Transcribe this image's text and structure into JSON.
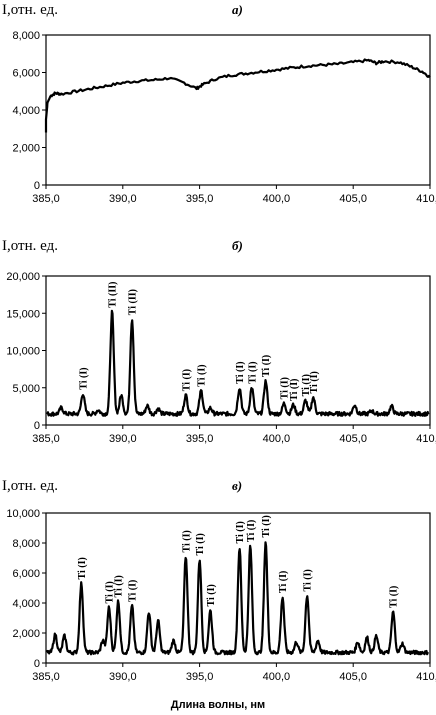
{
  "xlabel": "Длина волны, нм",
  "chart_data": [
    {
      "type": "line",
      "panel_label": "а)",
      "ylabel": "I,отн. ед.",
      "xlim": [
        385,
        410
      ],
      "ylim": [
        0,
        8000
      ],
      "x_ticks": [
        "385,0",
        "390,0",
        "395,0",
        "400,0",
        "405,0",
        "410,0"
      ],
      "y_ticks": [
        "0",
        "2,000",
        "4,000",
        "6,000",
        "8,000"
      ],
      "series": [
        {
          "x": [
            385.0,
            385.1,
            385.3,
            385.6,
            386.0,
            387.0,
            388.0,
            389.0,
            390.0,
            391.0,
            392.0,
            393.0,
            394.0,
            394.8,
            395.2,
            396.0,
            397.0,
            398.0,
            399.0,
            400.0,
            401.0,
            402.0,
            403.0,
            404.0,
            405.0,
            406.0,
            406.5,
            407.0,
            408.0,
            408.8,
            409.5,
            410.0
          ],
          "y": [
            3500,
            4400,
            4750,
            4900,
            4850,
            5000,
            5150,
            5300,
            5450,
            5550,
            5600,
            5700,
            5450,
            5150,
            5350,
            5650,
            5850,
            5950,
            6050,
            6150,
            6250,
            6350,
            6400,
            6450,
            6550,
            6650,
            6500,
            6600,
            6550,
            6300,
            6050,
            5750
          ]
        }
      ]
    },
    {
      "type": "line",
      "panel_label": "б)",
      "ylabel": "I,отн. ед.",
      "xlim": [
        385,
        410
      ],
      "ylim": [
        0,
        20000
      ],
      "x_ticks": [
        "385,0",
        "390,0",
        "395,0",
        "400,0",
        "405,0",
        "410,0"
      ],
      "y_ticks": [
        "0",
        "5,000",
        "10,000",
        "15,000",
        "20,000"
      ],
      "baseline": 1500,
      "peaks": [
        {
          "x": 386.0,
          "y": 2300,
          "label": ""
        },
        {
          "x": 387.4,
          "y": 4200,
          "label": "Ti (I)"
        },
        {
          "x": 388.4,
          "y": 2000,
          "label": ""
        },
        {
          "x": 389.3,
          "y": 15200,
          "label": "Ti (II)"
        },
        {
          "x": 389.9,
          "y": 4000,
          "label": ""
        },
        {
          "x": 390.6,
          "y": 14200,
          "label": "Ti (II)"
        },
        {
          "x": 391.6,
          "y": 2600,
          "label": ""
        },
        {
          "x": 392.3,
          "y": 2200,
          "label": ""
        },
        {
          "x": 394.1,
          "y": 4000,
          "label": "Ti (I)"
        },
        {
          "x": 395.1,
          "y": 4600,
          "label": "Ti (I)"
        },
        {
          "x": 395.7,
          "y": 2300,
          "label": ""
        },
        {
          "x": 397.6,
          "y": 5000,
          "label": "Ti (I)"
        },
        {
          "x": 398.4,
          "y": 5000,
          "label": "Ti (I)"
        },
        {
          "x": 399.3,
          "y": 5900,
          "label": "Ti (I)"
        },
        {
          "x": 400.5,
          "y": 2900,
          "label": "Ti (I)"
        },
        {
          "x": 401.1,
          "y": 2700,
          "label": "Ti (I)"
        },
        {
          "x": 401.9,
          "y": 3300,
          "label": "Ti (I)"
        },
        {
          "x": 402.4,
          "y": 3700,
          "label": "Ti (I)"
        },
        {
          "x": 405.1,
          "y": 2700,
          "label": ""
        },
        {
          "x": 406.2,
          "y": 1900,
          "label": ""
        },
        {
          "x": 407.5,
          "y": 2500,
          "label": ""
        }
      ]
    },
    {
      "type": "line",
      "panel_label": "в)",
      "ylabel": "I,отн. ед.",
      "xlim": [
        385,
        410
      ],
      "ylim": [
        0,
        10000
      ],
      "x_ticks": [
        "385,0",
        "390,0",
        "395,0",
        "400,0",
        "405,0",
        "410,0"
      ],
      "y_ticks": [
        "0",
        "2,000",
        "4,000",
        "6,000",
        "8,000",
        "10,000"
      ],
      "baseline": 700,
      "peaks": [
        {
          "x": 385.6,
          "y": 1900,
          "label": ""
        },
        {
          "x": 386.2,
          "y": 1800,
          "label": ""
        },
        {
          "x": 387.3,
          "y": 5300,
          "label": "Ti (I)"
        },
        {
          "x": 388.7,
          "y": 1500,
          "label": ""
        },
        {
          "x": 389.1,
          "y": 3700,
          "label": "Ti (I)"
        },
        {
          "x": 389.7,
          "y": 4100,
          "label": "Ti (I)"
        },
        {
          "x": 390.6,
          "y": 3800,
          "label": "Ti (I)"
        },
        {
          "x": 391.7,
          "y": 3400,
          "label": ""
        },
        {
          "x": 392.3,
          "y": 2800,
          "label": ""
        },
        {
          "x": 393.3,
          "y": 1500,
          "label": ""
        },
        {
          "x": 394.1,
          "y": 7100,
          "label": "Ti (I)"
        },
        {
          "x": 395.0,
          "y": 6900,
          "label": "Ti (I)"
        },
        {
          "x": 395.7,
          "y": 3500,
          "label": "Ti (I)"
        },
        {
          "x": 397.6,
          "y": 7700,
          "label": "Ti (I)"
        },
        {
          "x": 398.3,
          "y": 7800,
          "label": "Ti (I)"
        },
        {
          "x": 399.3,
          "y": 8100,
          "label": "Ti (I)"
        },
        {
          "x": 400.4,
          "y": 4400,
          "label": "Ti (I)"
        },
        {
          "x": 401.3,
          "y": 1400,
          "label": ""
        },
        {
          "x": 402.0,
          "y": 4500,
          "label": "Ti (I)"
        },
        {
          "x": 402.7,
          "y": 1500,
          "label": ""
        },
        {
          "x": 405.3,
          "y": 1400,
          "label": ""
        },
        {
          "x": 405.9,
          "y": 1700,
          "label": ""
        },
        {
          "x": 406.5,
          "y": 1800,
          "label": ""
        },
        {
          "x": 407.6,
          "y": 3400,
          "label": "Ti (I)"
        },
        {
          "x": 408.2,
          "y": 1300,
          "label": ""
        }
      ]
    }
  ]
}
